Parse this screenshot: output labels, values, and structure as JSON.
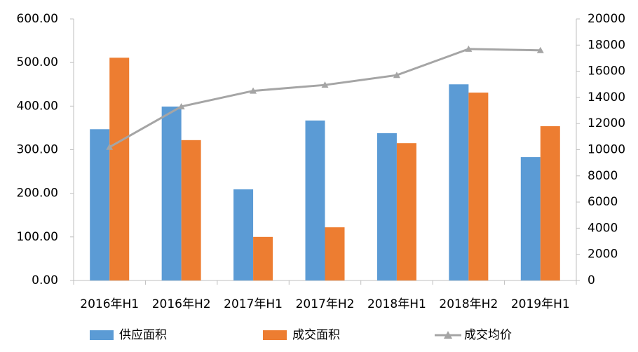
{
  "chart_data": {
    "type": "bar",
    "categories": [
      "2016年H1",
      "2016年H2",
      "2017年H1",
      "2017年H2",
      "2018年H1",
      "2018年H2",
      "2019年H1"
    ],
    "series": [
      {
        "name": "供应面积",
        "color": "#5b9bd5",
        "type": "bar",
        "values": [
          347,
          399,
          209,
          367,
          338,
          450,
          283
        ]
      },
      {
        "name": "成交面积",
        "color": "#ed7d31",
        "type": "bar",
        "values": [
          511,
          322,
          100,
          122,
          315,
          431,
          354
        ]
      },
      {
        "name": "成交均价",
        "color": "#a5a5a5",
        "type": "line",
        "axis": "y2",
        "values": [
          10200,
          13300,
          14500,
          14950,
          15700,
          17700,
          17600
        ]
      }
    ],
    "ylim": [
      0,
      600
    ],
    "yticks": [
      {
        "value": 0,
        "label": "0.00"
      },
      {
        "value": 100,
        "label": "100.00"
      },
      {
        "value": 200,
        "label": "200.00"
      },
      {
        "value": 300,
        "label": "300.00"
      },
      {
        "value": 400,
        "label": "400.00"
      },
      {
        "value": 500,
        "label": "500.00"
      },
      {
        "value": 600,
        "label": "600.00"
      }
    ],
    "y2lim": [
      0,
      20000
    ],
    "y2ticks": [
      0,
      2000,
      4000,
      6000,
      8000,
      10000,
      12000,
      14000,
      16000,
      18000,
      20000
    ],
    "grid": false,
    "legend": "bottom"
  }
}
